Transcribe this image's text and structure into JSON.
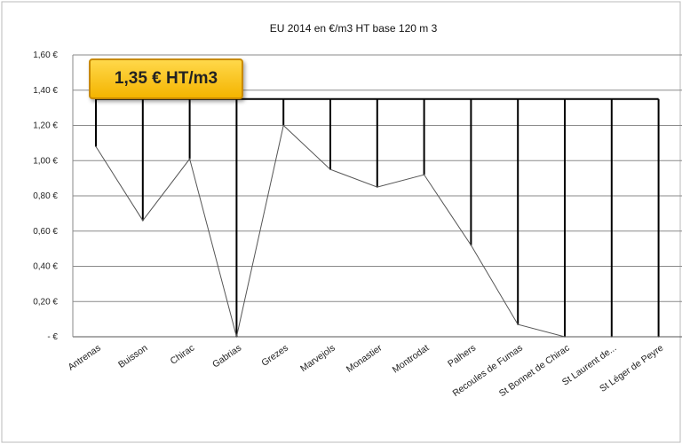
{
  "chart_data": {
    "type": "line",
    "title": "EU  2014 en €/m3 HT base 120 m 3",
    "categories": [
      "Antrenas",
      "Buisson",
      "Chirac",
      "Gabrias",
      "Grezes",
      "Marvejols",
      "Monastier",
      "Montrodat",
      "Palhers",
      "Recoules de Fumas",
      "St Bonnet de Chirac",
      "St Laurent de...",
      "St Léger de Peyre"
    ],
    "series": [
      {
        "values": [
          1.08,
          0.66,
          1.01,
          0.0,
          1.2,
          0.95,
          0.85,
          0.92,
          0.52,
          0.07,
          0.0,
          0.0,
          0.0
        ]
      }
    ],
    "reference_line": {
      "value": 1.35,
      "label": "1,35 € HT/m3"
    },
    "y_ticks": [
      "1,60 €",
      "1,40 €",
      "1,20 €",
      "1,00 €",
      "0,80 €",
      "0,60 €",
      "0,40 €",
      "0,20 €",
      "- €"
    ],
    "ylim": [
      0,
      1.6
    ],
    "grid": true,
    "colors": {
      "line": "#555555",
      "drop": "#000000",
      "callout_fill": "#f4b400",
      "callout_border": "#c98a00"
    }
  }
}
